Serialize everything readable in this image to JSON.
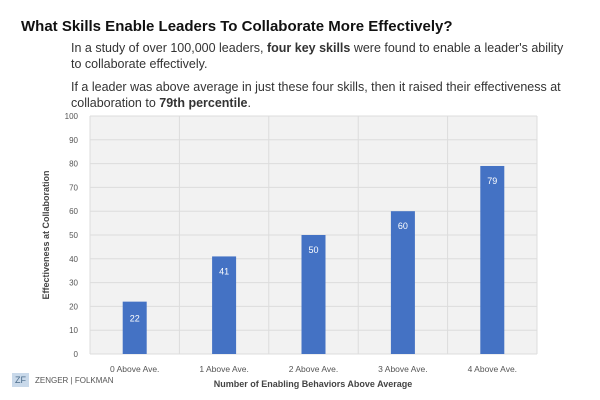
{
  "header": {
    "title": "What Skills Enable Leaders To Collaborate More Effectively?",
    "para1_a": "In a study of over 100,000 leaders, ",
    "para1_b": "four key skills",
    "para1_c": " were found to enable a leader's ability to collaborate effectively.",
    "para2_a": "If a leader was above average in just these four skills, then it raised their effectiveness at collaboration to ",
    "para2_b": "79th percentile",
    "para2_c": "."
  },
  "logo": {
    "mark": "ZF",
    "text": "ZENGER | FOLKMAN"
  },
  "chart_data": {
    "type": "bar",
    "categories": [
      "0 Above Ave.",
      "1 Above Ave.",
      "2 Above Ave.",
      "3 Above Ave.",
      "4 Above Ave."
    ],
    "values": [
      22,
      41,
      50,
      60,
      79
    ],
    "xlabel": "Number of Enabling Behaviors Above Average",
    "ylabel": "Effectiveness at Collaboration",
    "ylim": [
      0,
      100
    ],
    "yticks": [
      0,
      10,
      20,
      30,
      40,
      50,
      60,
      70,
      80,
      90,
      100
    ],
    "grid": true,
    "bar_color": "#4472c4",
    "plot_bg": "#f2f2f2"
  }
}
